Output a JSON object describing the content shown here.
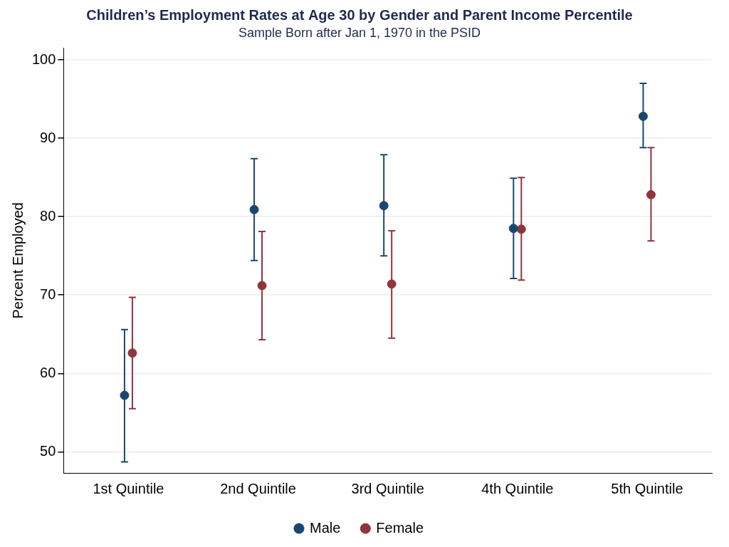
{
  "chart_data": {
    "type": "scatter",
    "title": "Children’s Employment Rates at Age 30 by Gender and Parent Income Percentile",
    "subtitle": "Sample Born after Jan 1, 1970 in the PSID",
    "y_label": "Percent Employed",
    "categories": [
      "1st Quintile",
      "2nd Quintile",
      "3rd Quintile",
      "4th Quintile",
      "5th Quintile"
    ],
    "series": [
      {
        "name": "Male",
        "color": "#1a476f",
        "marker": "circle",
        "values": [
          57.2,
          80.9,
          81.4,
          78.5,
          92.8
        ],
        "ci_low": [
          48.7,
          74.4,
          75.0,
          72.1,
          88.8
        ],
        "ci_high": [
          65.6,
          87.4,
          87.9,
          84.9,
          97.0
        ]
      },
      {
        "name": "Female",
        "color": "#90353b",
        "marker": "circle",
        "values": [
          62.6,
          71.2,
          71.4,
          78.4,
          82.8
        ],
        "ci_low": [
          55.5,
          64.3,
          64.5,
          71.9,
          76.9
        ],
        "ci_high": [
          69.7,
          78.1,
          78.2,
          85.0,
          88.8
        ]
      }
    ],
    "ylim": [
      47.3,
      101.5
    ],
    "yticks": [
      50,
      60,
      70,
      80,
      90,
      100
    ],
    "grid": true,
    "legend": "bottom"
  }
}
